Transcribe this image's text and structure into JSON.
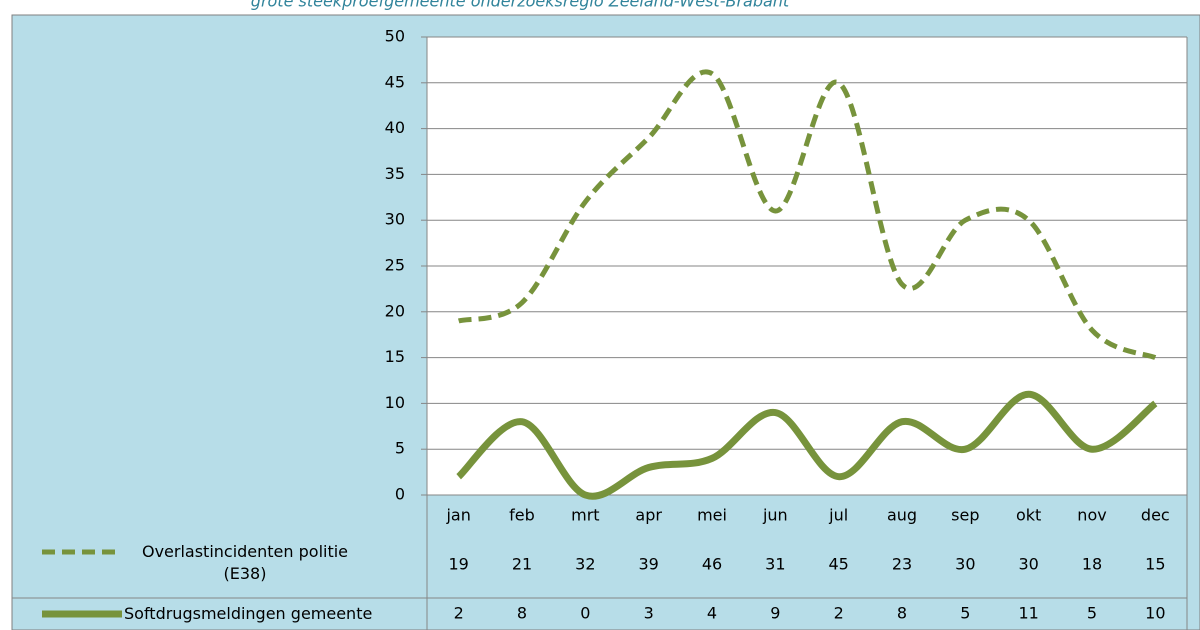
{
  "chart_data": {
    "type": "line",
    "title": "grote steekproefgemeente onderzoeksregio Zeeland-West-Brabant",
    "categories": [
      "jan",
      "feb",
      "mrt",
      "apr",
      "mei",
      "jun",
      "jul",
      "aug",
      "sep",
      "okt",
      "nov",
      "dec"
    ],
    "series": [
      {
        "name": "Overlastincidenten politie (E38)",
        "color": "#77933c",
        "dash": true,
        "values": [
          19,
          21,
          32,
          39,
          46,
          31,
          45,
          23,
          30,
          30,
          18,
          15
        ]
      },
      {
        "name": "Softdrugsmeldingen gemeente",
        "color": "#77933c",
        "dash": false,
        "values": [
          2,
          8,
          0,
          3,
          4,
          9,
          2,
          8,
          5,
          11,
          5,
          10
        ]
      }
    ],
    "ylim": [
      0,
      50
    ],
    "yticks": [
      0,
      5,
      10,
      15,
      20,
      25,
      30,
      35,
      40,
      45,
      50
    ],
    "grid": true
  }
}
